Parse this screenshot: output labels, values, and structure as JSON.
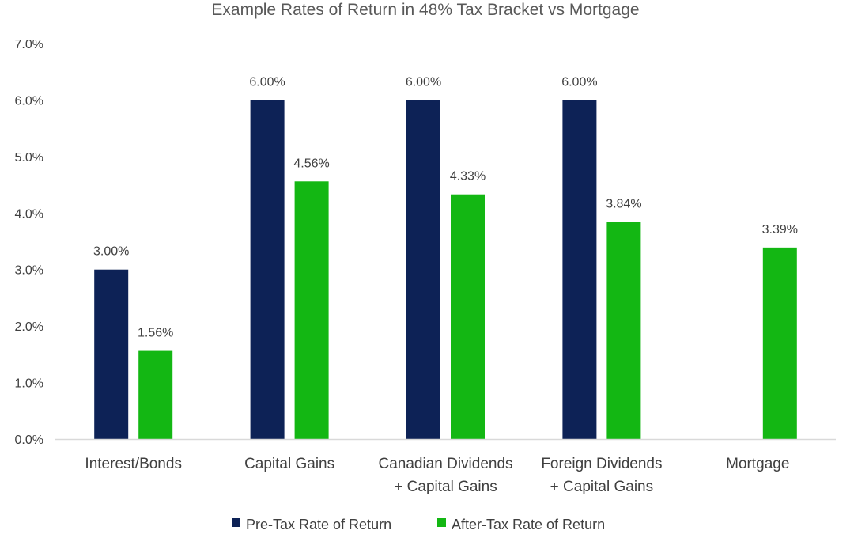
{
  "colors": {
    "pre_tax": "#0d2256",
    "after_tax": "#13b713",
    "axis": "#d9d9d9"
  },
  "chart_data": {
    "type": "bar",
    "title": "Example Rates of Return in 48% Tax Bracket vs Mortgage",
    "xlabel": "",
    "ylabel": "",
    "ylim": [
      0,
      7
    ],
    "ytick_values": [
      0,
      1,
      2,
      3,
      4,
      5,
      6,
      7
    ],
    "ytick_labels": [
      "0.0%",
      "1.0%",
      "2.0%",
      "3.0%",
      "4.0%",
      "5.0%",
      "6.0%",
      "7.0%"
    ],
    "categories": [
      [
        "Interest/Bonds"
      ],
      [
        "Capital Gains"
      ],
      [
        "Canadian Dividends",
        "+ Capital Gains"
      ],
      [
        "Foreign Dividends",
        "+ Capital Gains"
      ],
      [
        "Mortgage"
      ]
    ],
    "series": [
      {
        "name": "Pre-Tax Rate of Return",
        "color": "#0d2256",
        "values": [
          3.0,
          6.0,
          6.0,
          6.0,
          null
        ],
        "labels": [
          "3.00%",
          "6.00%",
          "6.00%",
          "6.00%",
          null
        ]
      },
      {
        "name": "After-Tax Rate of Return",
        "color": "#13b713",
        "values": [
          1.56,
          4.56,
          4.33,
          3.84,
          3.39
        ],
        "labels": [
          "1.56%",
          "4.56%",
          "4.33%",
          "3.84%",
          "3.39%"
        ]
      }
    ],
    "grid": false,
    "legend_position": "bottom"
  }
}
